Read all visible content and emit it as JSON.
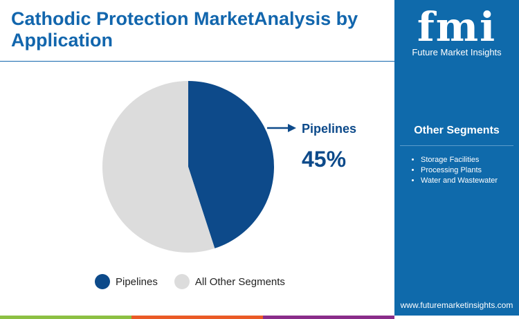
{
  "title": "Cathodic Protection MarketAnalysis by Application",
  "brand": {
    "logo_text": "fmi",
    "name": "Future Market Insights",
    "url": "www.futuremarketinsights.com"
  },
  "sidebar": {
    "heading": "Other Segments",
    "items": [
      "Storage Facilities",
      "Processing Plants",
      "Water and Wastewater"
    ]
  },
  "colors": {
    "primary": "#0d4a8a",
    "other": "#dcdcdc",
    "sidebar": "#0f6aab",
    "bar": [
      "#8cc043",
      "#ea5a26",
      "#8a2d8a"
    ]
  },
  "chart_data": {
    "type": "pie",
    "slices": [
      {
        "label": "Pipelines",
        "value": 45,
        "color": "#0d4a8a"
      },
      {
        "label": "All Other Segments",
        "value": 55,
        "color": "#dcdcdc"
      }
    ],
    "callout": {
      "label": "Pipelines",
      "value": "45%"
    },
    "legend": [
      "Pipelines",
      "All Other Segments"
    ],
    "legend_position": "bottom"
  }
}
